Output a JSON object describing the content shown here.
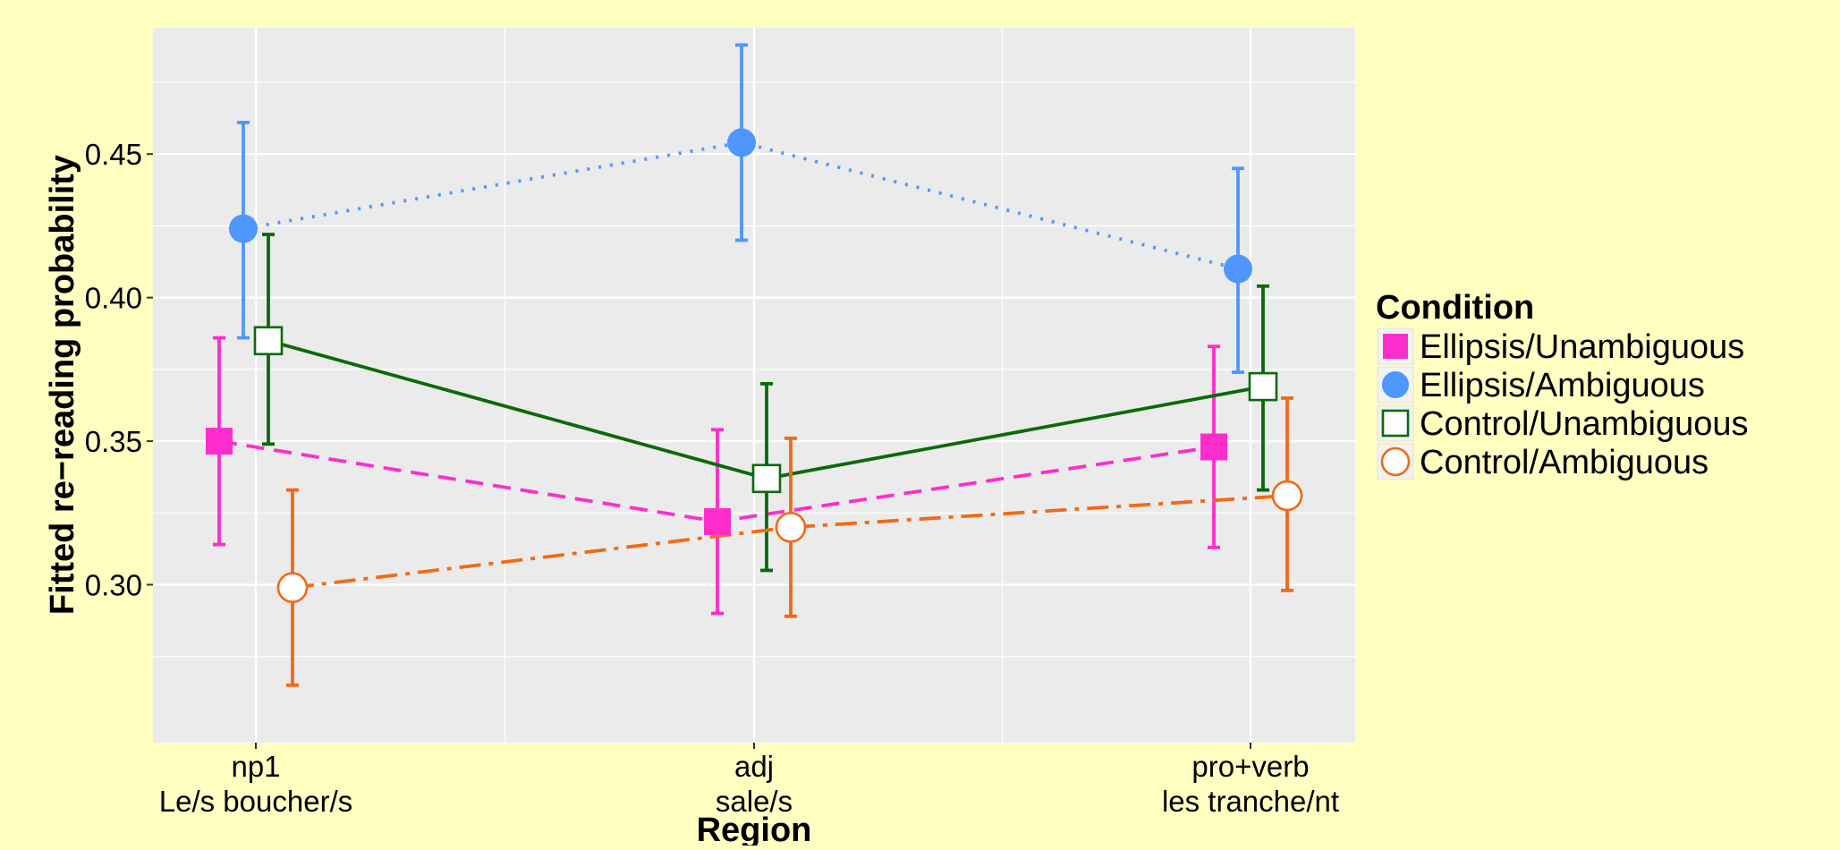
{
  "chart_data": {
    "type": "line",
    "xlabel": "Region",
    "ylabel": "Fitted re−reading probability",
    "categories": [
      {
        "label1": "np1",
        "label2": "Le/s boucher/s"
      },
      {
        "label1": "adj",
        "label2": "sale/s"
      },
      {
        "label1": "pro+verb",
        "label2": "les tranche/nt"
      }
    ],
    "ylim": [
      0.245,
      0.494
    ],
    "yticks": [
      0.3,
      0.35,
      0.4,
      0.45
    ],
    "ytick_labels": [
      "0.30",
      "0.35",
      "0.40",
      "0.45"
    ],
    "grid": true,
    "legend_title": "Condition",
    "legend_position": "right",
    "series": [
      {
        "name": "Ellipsis/Unambiguous",
        "color": "#ff2ccc",
        "marker": "filled-square",
        "linestyle": "dashed",
        "values": [
          0.35,
          0.322,
          0.348
        ],
        "lower": [
          0.314,
          0.29,
          0.313
        ],
        "upper": [
          0.386,
          0.354,
          0.383
        ]
      },
      {
        "name": "Ellipsis/Ambiguous",
        "color": "#4f97ff",
        "marker": "filled-circle",
        "linestyle": "dotted",
        "values": [
          0.424,
          0.454,
          0.41
        ],
        "lower": [
          0.386,
          0.42,
          0.374
        ],
        "upper": [
          0.461,
          0.488,
          0.445
        ]
      },
      {
        "name": "Control/Unambiguous",
        "color": "#0a6a0a",
        "marker": "open-square",
        "linestyle": "solid",
        "values": [
          0.385,
          0.337,
          0.369
        ],
        "lower": [
          0.349,
          0.305,
          0.333
        ],
        "upper": [
          0.422,
          0.37,
          0.404
        ]
      },
      {
        "name": "Control/Ambiguous",
        "color": "#f26a16",
        "marker": "open-circle",
        "linestyle": "dashdot",
        "values": [
          0.299,
          0.32,
          0.331
        ],
        "lower": [
          0.265,
          0.289,
          0.298
        ],
        "upper": [
          0.333,
          0.351,
          0.365
        ]
      }
    ]
  }
}
